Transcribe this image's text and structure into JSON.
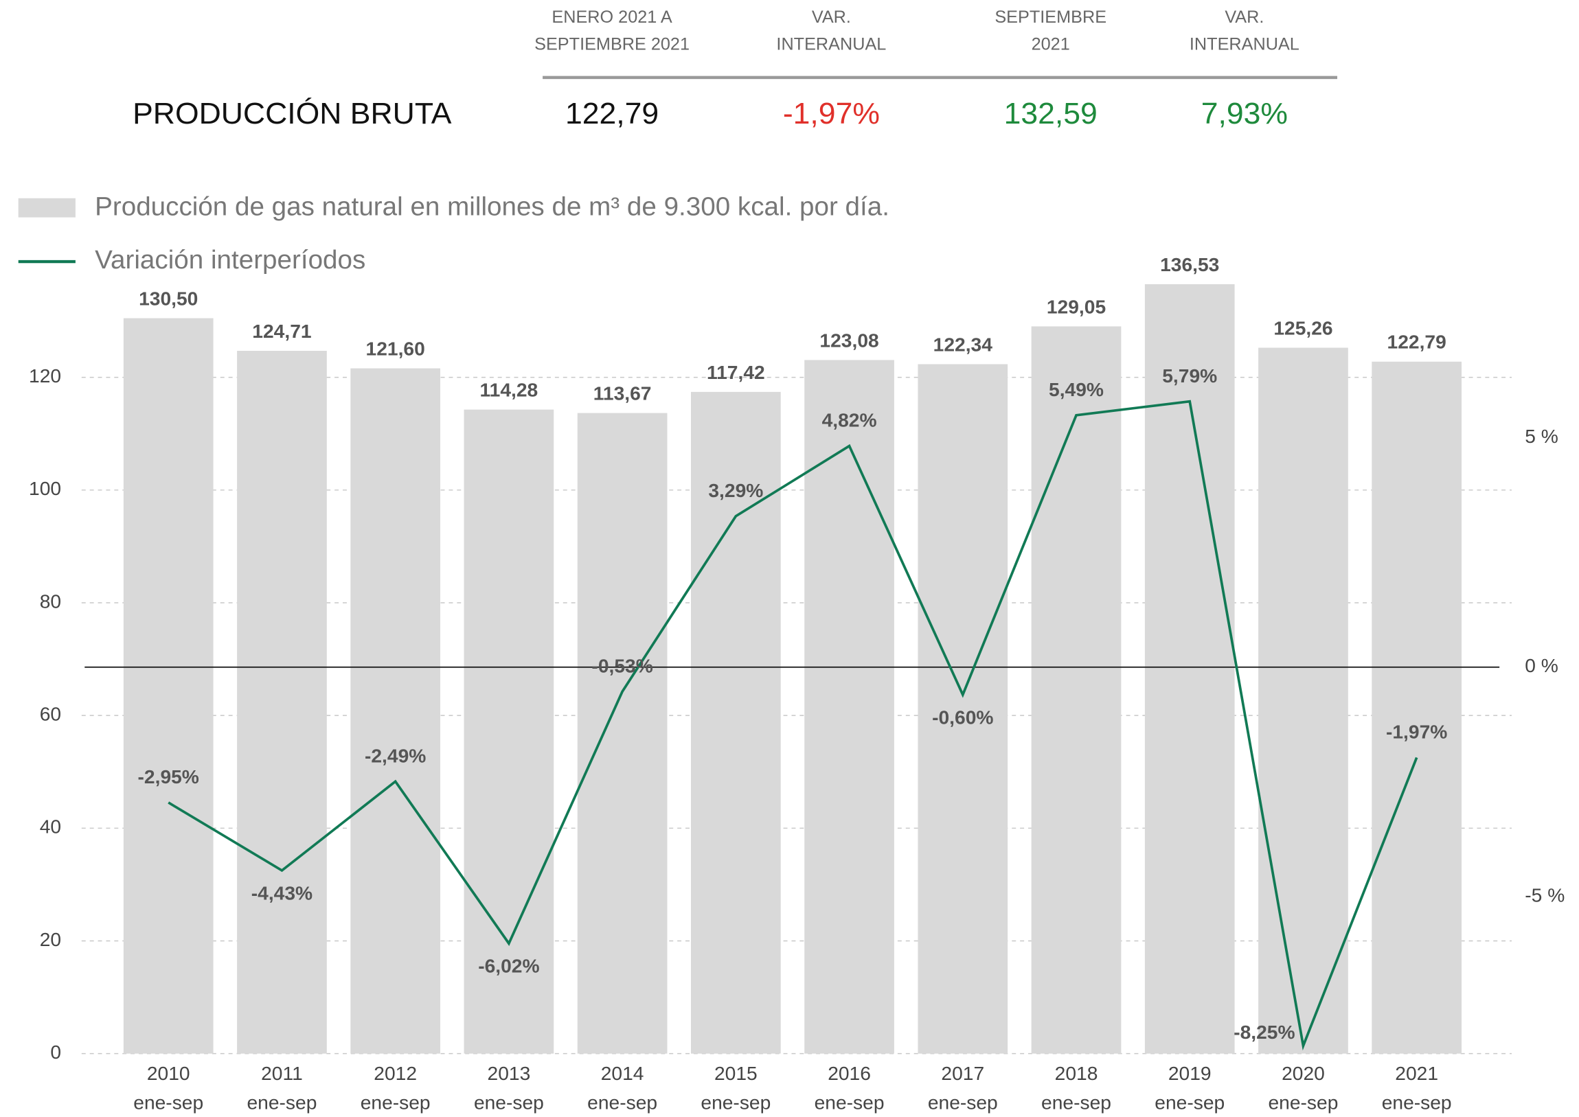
{
  "header": {
    "columns": [
      [
        "ENERO 2021 A",
        "SEPTIEMBRE 2021"
      ],
      [
        "VAR.",
        "INTERANUAL"
      ],
      [
        "SEPTIEMBRE",
        "2021"
      ],
      [
        "VAR.",
        "INTERANUAL"
      ]
    ],
    "row": {
      "label": "PRODUCCIÓN BRUTA",
      "values": [
        "122,79",
        "-1,97%",
        "132,59",
        "7,93%"
      ],
      "colors": [
        "#111111",
        "#e0302a",
        "#1e8a3c",
        "#1e8a3c"
      ]
    }
  },
  "chart_data": {
    "type": "bar",
    "categories": [
      [
        "2010",
        "ene-sep"
      ],
      [
        "2011",
        "ene-sep"
      ],
      [
        "2012",
        "ene-sep"
      ],
      [
        "2013",
        "ene-sep"
      ],
      [
        "2014",
        "ene-sep"
      ],
      [
        "2015",
        "ene-sep"
      ],
      [
        "2016",
        "ene-sep"
      ],
      [
        "2017",
        "ene-sep"
      ],
      [
        "2018",
        "ene-sep"
      ],
      [
        "2019",
        "ene-sep"
      ],
      [
        "2020",
        "ene-sep"
      ],
      [
        "2021",
        "ene-sep"
      ]
    ],
    "series": [
      {
        "name": "Producción de gas natural en millones de m³ de 9.300 kcal. por día.",
        "type": "bar",
        "color": "#d9d9d9",
        "values": [
          130.5,
          124.71,
          121.6,
          114.28,
          113.67,
          117.42,
          123.08,
          122.34,
          129.05,
          136.53,
          125.26,
          122.79
        ],
        "value_labels": [
          "130,50",
          "124,71",
          "121,60",
          "114,28",
          "113,67",
          "117,42",
          "123,08",
          "122,34",
          "129,05",
          "136,53",
          "125,26",
          "122,79"
        ]
      },
      {
        "name": "Variación interperíodos",
        "type": "line",
        "axis": "y2",
        "color": "#117a55",
        "values": [
          -2.95,
          -4.43,
          -2.49,
          -6.02,
          -0.53,
          3.29,
          4.82,
          -0.6,
          5.49,
          5.79,
          -8.25,
          -1.97
        ],
        "value_labels": [
          "-2,95%",
          "-4,43%",
          "-2,49%",
          "-6,02%",
          "-0,53%",
          "3,29%",
          "4,82%",
          "-0,60%",
          "5,49%",
          "5,79%",
          "-8,25%",
          "-1,97%"
        ]
      }
    ],
    "ylim": [
      0,
      140
    ],
    "yticks": [
      0,
      20,
      40,
      60,
      80,
      100,
      120
    ],
    "y2lim": [
      -8.42,
      8.77
    ],
    "y2ticks": [
      {
        "value": 5,
        "label": "5 %"
      },
      {
        "value": 0,
        "label": "0 %"
      },
      {
        "value": -5,
        "label": "-5 %"
      }
    ],
    "grid": true
  }
}
